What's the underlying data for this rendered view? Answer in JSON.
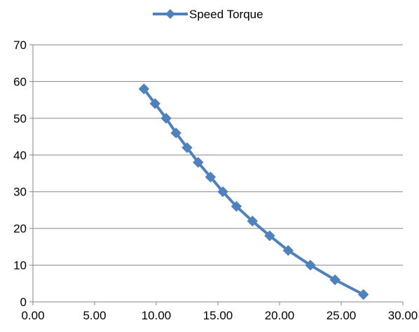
{
  "chart_data": {
    "type": "line",
    "series": [
      {
        "name": "Speed Torque",
        "x": [
          9.0,
          9.9,
          10.8,
          11.6,
          12.5,
          13.4,
          14.4,
          15.4,
          16.5,
          17.8,
          19.2,
          20.7,
          22.5,
          24.5,
          26.8
        ],
        "y": [
          58,
          54,
          50,
          46,
          42,
          38,
          34,
          30,
          26,
          22,
          18,
          14,
          10,
          6,
          2
        ],
        "color": "#4F81BD",
        "marker": "diamond"
      }
    ],
    "xlim": [
      0,
      30
    ],
    "ylim": [
      0,
      70
    ],
    "x_ticks": [
      "0.00",
      "5.00",
      "10.00",
      "15.00",
      "20.00",
      "25.00",
      "30.00"
    ],
    "y_ticks": [
      "0",
      "10",
      "20",
      "30",
      "40",
      "50",
      "60",
      "70"
    ],
    "grid": "horizontal",
    "legend_position": "top-center",
    "title": "",
    "xlabel": "",
    "ylabel": ""
  }
}
